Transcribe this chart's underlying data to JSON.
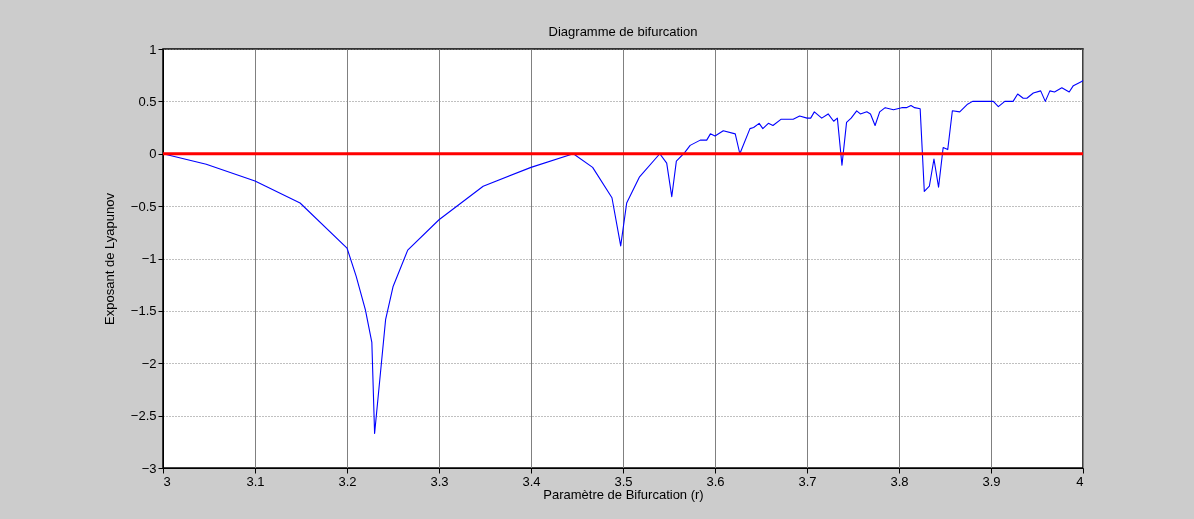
{
  "chart_data": {
    "type": "line",
    "title": "Diagramme de bifurcation",
    "xlabel": "Paramètre de Bifurcation (r)",
    "ylabel": "Exposant de Lyapunov",
    "x": [
      3.0,
      3.047,
      3.1,
      3.149,
      3.2,
      3.21,
      3.22,
      3.227,
      3.23,
      3.242,
      3.25,
      3.266,
      3.3,
      3.348,
      3.4,
      3.446,
      3.467,
      3.488,
      3.4975,
      3.504,
      3.518,
      3.54,
      3.5475,
      3.553,
      3.558,
      3.567,
      3.573,
      3.584,
      3.591,
      3.595,
      3.6,
      3.609,
      3.622,
      3.627,
      3.638,
      3.642,
      3.648,
      3.652,
      3.658,
      3.663,
      3.672,
      3.685,
      3.692,
      3.7,
      3.704,
      3.708,
      3.716,
      3.723,
      3.729,
      3.733,
      3.738,
      3.743,
      3.748,
      3.754,
      3.758,
      3.765,
      3.769,
      3.774,
      3.779,
      3.785,
      3.794,
      3.803,
      3.808,
      3.813,
      3.817,
      3.823,
      3.8275,
      3.833,
      3.838,
      3.843,
      3.848,
      3.853,
      3.858,
      3.866,
      3.874,
      3.88,
      3.888,
      3.9025,
      3.908,
      3.915,
      3.924,
      3.929,
      3.935,
      3.939,
      3.946,
      3.954,
      3.959,
      3.964,
      3.969,
      3.977,
      3.985,
      3.9895,
      3.9986,
      4.0
    ],
    "series": [
      {
        "color": "#0000ff",
        "values": [
          0,
          -0.1,
          -0.26,
          -0.47,
          -0.9,
          -1.17,
          -1.49,
          -1.8,
          -2.67,
          -1.58,
          -1.27,
          -0.92,
          -0.63,
          -0.31,
          -0.13,
          0,
          -0.13,
          -0.42,
          -0.88,
          -0.47,
          -0.22,
          0,
          -0.09,
          -0.41,
          -0.07,
          0.01,
          0.08,
          0.13,
          0.13,
          0.19,
          0.17,
          0.22,
          0.19,
          0,
          0.24,
          0.25,
          0.29,
          0.24,
          0.29,
          0.27,
          0.33,
          0.33,
          0.36,
          0.34,
          0.34,
          0.4,
          0.34,
          0.38,
          0.31,
          0.34,
          -0.11,
          0.3,
          0.34,
          0.41,
          0.38,
          0.4,
          0.38,
          0.27,
          0.4,
          0.44,
          0.42,
          0.44,
          0.44,
          0.46,
          0.44,
          0.43,
          -0.36,
          -0.31,
          -0.05,
          -0.32,
          0.06,
          0.04,
          0.41,
          0.4,
          0.47,
          0.5,
          0.5,
          0.5,
          0.45,
          0.5,
          0.5,
          0.57,
          0.53,
          0.53,
          0.58,
          0.6,
          0.5,
          0.6,
          0.59,
          0.63,
          0.59,
          0.65,
          0.69,
          0.7
        ]
      }
    ],
    "xlim": [
      3,
      4
    ],
    "xticks": [
      3,
      3.1,
      3.2,
      3.3,
      3.4,
      3.5,
      3.6,
      3.7,
      3.8,
      3.9,
      4
    ],
    "ylim": [
      -3,
      1
    ],
    "yticks": [
      -3,
      -2.5,
      -2,
      -1.5,
      -1,
      -0.5,
      0,
      0.5,
      1
    ],
    "grid": true,
    "line_style": "solid",
    "ref_lines": [
      {
        "axis": "y",
        "value": 0,
        "color": "#ff0000"
      }
    ]
  }
}
